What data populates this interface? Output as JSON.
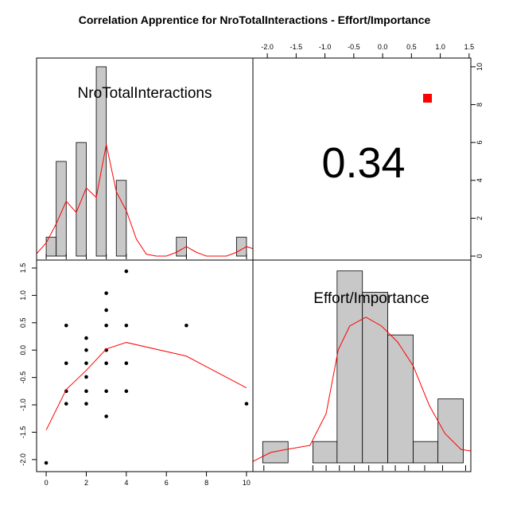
{
  "title": "Correlation Apprentice for NroTotalInteractions - Effort/Importance",
  "chart_data": [
    {
      "type": "histogram",
      "label": "NroTotalInteractions",
      "color": "#c8c8c8",
      "line_color": "#ff0000",
      "bins": [
        0,
        0.5,
        1,
        1.5,
        2,
        2.5,
        3,
        3.5,
        4,
        4.5,
        5,
        5.5,
        6,
        6.5,
        7,
        7.5,
        8,
        8.5,
        9,
        9.5,
        10
      ],
      "counts": [
        1,
        5,
        0,
        6,
        0,
        10,
        0,
        4,
        0,
        0,
        0,
        0,
        0,
        1,
        0,
        0,
        0,
        0,
        0,
        1
      ],
      "density": {
        "x": [
          -0.5,
          0,
          0.5,
          1,
          1.5,
          2,
          2.5,
          3,
          3.5,
          4,
          4.5,
          5,
          5.5,
          6,
          6.5,
          7,
          7.5,
          8,
          9,
          9.5,
          10,
          10.3
        ],
        "y": [
          0.1,
          0.7,
          1.7,
          2.9,
          2.3,
          3.6,
          3.1,
          5.9,
          3.4,
          2.4,
          0.9,
          0.1,
          0,
          0,
          0.2,
          0.5,
          0.2,
          0,
          0,
          0.2,
          0.5,
          0.4
        ]
      },
      "rug": [
        0,
        1,
        2,
        3,
        4,
        7,
        10
      ],
      "xlim": [
        -0.48,
        10.32
      ],
      "ylim": [
        -0.21,
        10.46
      ],
      "yticks": [
        0,
        2,
        4,
        6,
        8,
        10
      ],
      "yaxis": "right"
    },
    {
      "type": "correlation",
      "value": 0.34,
      "marker_color": "#ff0000"
    },
    {
      "type": "scatter",
      "color": "#000000",
      "line_color": "#ff0000",
      "x": [
        0,
        1,
        1,
        1,
        1,
        2,
        2,
        2,
        2,
        2,
        2,
        3,
        3,
        3,
        3,
        3,
        3,
        3,
        4,
        4,
        4,
        4,
        7,
        10
      ],
      "y": [
        -2.06,
        0.45,
        -0.24,
        -0.75,
        -0.98,
        0.22,
        0.0,
        -0.24,
        -0.49,
        -0.75,
        -0.98,
        1.04,
        0.73,
        0.45,
        0.0,
        -0.24,
        -0.75,
        -1.21,
        1.44,
        0.45,
        -0.24,
        -0.75,
        0.45,
        -0.98
      ],
      "smooth": {
        "x": [
          0,
          1,
          2,
          3,
          4,
          7,
          10
        ],
        "y": [
          -1.46,
          -0.72,
          -0.37,
          0.02,
          0.14,
          -0.11,
          -0.69
        ]
      },
      "xlim": [
        -0.48,
        10.32
      ],
      "ylim": [
        -2.22,
        1.645
      ],
      "xticks": [
        0,
        2,
        4,
        6,
        8,
        10
      ],
      "yticks": [
        {
          "value": -2,
          "label": "-2.0"
        },
        -1.5,
        {
          "value": -1,
          "label": "-1.0"
        },
        -0.5,
        {
          "value": 0,
          "label": "0.0"
        },
        0.5,
        {
          "value": 1,
          "label": "1.0"
        },
        1.5
      ]
    },
    {
      "type": "histogram",
      "label": "Effort/Importance",
      "color": "#c8c8c8",
      "line_color": "#ff0000",
      "bins": [
        -2.08,
        -1.64,
        -1.21,
        -0.79,
        -0.35,
        0.09,
        0.53,
        0.96,
        1.4
      ],
      "counts": [
        1,
        0,
        1,
        9,
        8,
        6,
        1,
        3
      ],
      "density": {
        "x": [
          -2.25,
          -1.94,
          -1.67,
          -1.26,
          -0.98,
          -0.77,
          -0.57,
          -0.29,
          -0.02,
          0.26,
          0.53,
          0.81,
          1.08,
          1.36,
          1.53
        ],
        "y": [
          0.07,
          0.49,
          0.63,
          0.82,
          2.31,
          5.3,
          6.42,
          6.83,
          6.42,
          5.67,
          4.55,
          2.69,
          1.38,
          0.63,
          0.56
        ]
      },
      "rug": [
        -2.06,
        -1.21,
        -0.98,
        -0.75,
        -0.49,
        -0.24,
        0.0,
        0.22,
        0.45,
        0.73,
        1.04,
        1.44
      ],
      "xlim": [
        -2.25,
        1.53
      ],
      "ylim": [
        -0.41,
        9.51
      ],
      "xticks": [
        {
          "value": -2,
          "label": "-2.0"
        },
        -1.5,
        {
          "value": -1,
          "label": "-1.0"
        },
        -0.5,
        {
          "value": 0,
          "label": "0.0"
        },
        0.5,
        {
          "value": 1,
          "label": "1.0"
        },
        1.5
      ],
      "xaxis": "top"
    }
  ]
}
